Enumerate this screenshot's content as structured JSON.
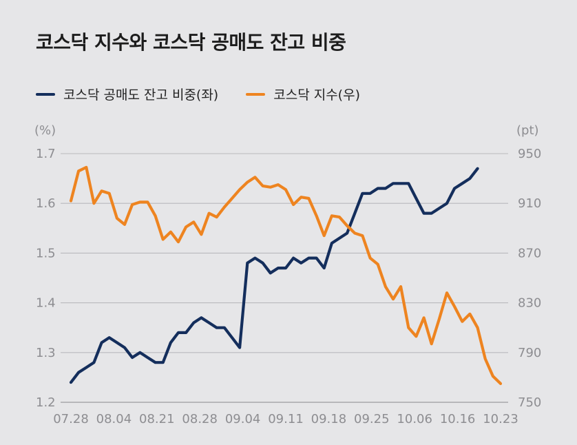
{
  "title": "코스닥 지수와 코스닥 공매도 잔고 비중",
  "legend": [
    {
      "label": "코스닥 공매도 잔고 비중(좌)",
      "color": "#142e5c"
    },
    {
      "label": "코스닥 지수(우)",
      "color": "#ee8420"
    }
  ],
  "chart_data": {
    "type": "line",
    "left_axis": {
      "unit": "(%)",
      "ticks": [
        "1.7",
        "1.6",
        "1.5",
        "1.4",
        "1.3",
        "1.2"
      ],
      "range": [
        1.2,
        1.7
      ]
    },
    "right_axis": {
      "unit": "(pt)",
      "ticks": [
        "950",
        "910",
        "870",
        "830",
        "790",
        "750"
      ],
      "range": [
        750,
        950
      ]
    },
    "x_tick_labels": [
      "07.28",
      "08.04",
      "08.21",
      "08.28",
      "09.04",
      "09.11",
      "09.18",
      "09.25",
      "10.06",
      "10.16",
      "10.23"
    ],
    "grid": "horizontal",
    "series": [
      {
        "name": "코스닥 공매도 잔고 비중(좌)",
        "axis": "left",
        "color": "#142e5c",
        "values": [
          1.24,
          1.26,
          1.27,
          1.28,
          1.32,
          1.33,
          1.32,
          1.31,
          1.29,
          1.3,
          1.29,
          1.28,
          1.28,
          1.32,
          1.34,
          1.34,
          1.36,
          1.37,
          1.36,
          1.35,
          1.35,
          1.33,
          1.31,
          1.48,
          1.49,
          1.48,
          1.46,
          1.47,
          1.47,
          1.49,
          1.48,
          1.49,
          1.49,
          1.47,
          1.52,
          1.53,
          1.54,
          1.58,
          1.62,
          1.62,
          1.63,
          1.63,
          1.64,
          1.64,
          1.64,
          1.61,
          1.58,
          1.58,
          1.59,
          1.6,
          1.63,
          1.64,
          1.65,
          1.67
        ]
      },
      {
        "name": "코스닥 지수(우)",
        "axis": "right",
        "color": "#ee8420",
        "values": [
          912,
          936,
          939,
          910,
          920,
          918,
          898,
          893,
          909,
          911,
          911,
          900,
          881,
          887,
          879,
          891,
          895,
          885,
          902,
          899,
          907,
          914,
          921,
          927,
          931,
          924,
          923,
          925,
          921,
          909,
          915,
          914,
          900,
          884,
          900,
          899,
          892,
          886,
          884,
          866,
          861,
          843,
          833,
          843,
          810,
          803,
          818,
          797,
          817,
          838,
          827,
          815,
          821,
          810,
          785,
          771,
          765
        ]
      }
    ]
  }
}
